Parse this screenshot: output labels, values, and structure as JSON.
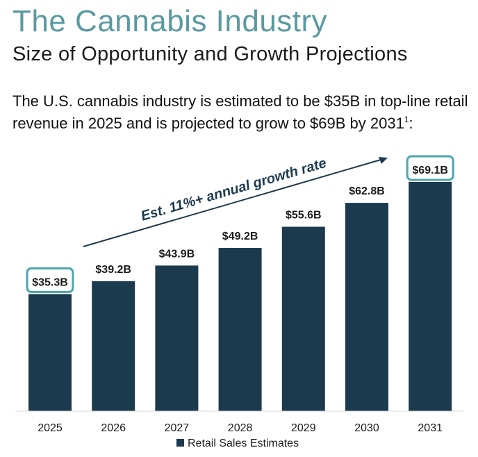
{
  "header": {
    "title": "The Cannabis Industry",
    "subtitle": "Size of Opportunity and Growth Projections"
  },
  "intro": {
    "text": "The U.S. cannabis industry is estimated to be $35B in top-line retail revenue in 2025 and is projected to grow to $69B by 2031",
    "footnote_marker": "1",
    "suffix": ":"
  },
  "colors": {
    "title": "#5a9aa0",
    "bar": "#1c3a4e",
    "highlight_box": "#4aa6ad"
  },
  "chart_data": {
    "type": "bar",
    "categories": [
      "2025",
      "2026",
      "2027",
      "2028",
      "2029",
      "2030",
      "2031"
    ],
    "series": [
      {
        "name": "Retail Sales Estimates",
        "values": [
          35.3,
          39.2,
          43.9,
          49.2,
          55.6,
          62.8,
          69.1
        ]
      }
    ],
    "data_labels": [
      "$35.3B",
      "$39.2B",
      "$43.9B",
      "$49.2B",
      "$55.6B",
      "$62.8B",
      "$69.1B"
    ],
    "highlighted_categories": [
      "2025",
      "2031"
    ],
    "annotation": "Est. 11%+ annual growth rate",
    "ylim": [
      0,
      69.1
    ],
    "grid": false,
    "legend_position": "bottom"
  }
}
